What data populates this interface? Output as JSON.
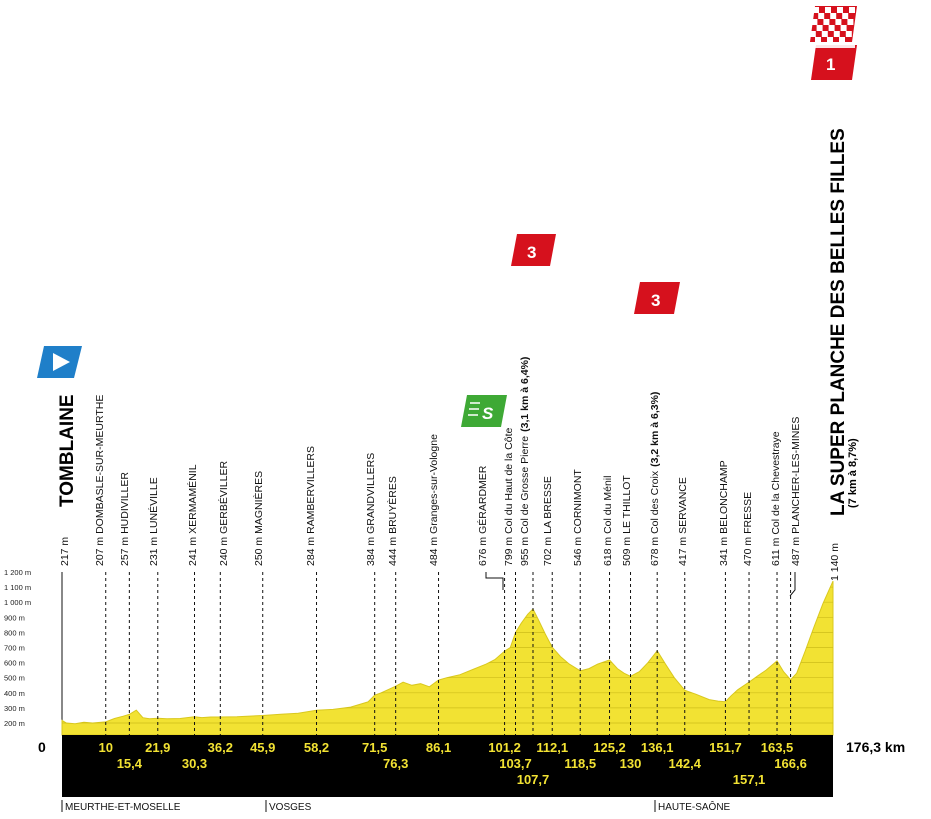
{
  "start": {
    "name": "TOMBLAINE",
    "altitude": "217 m"
  },
  "finish": {
    "name": "LA SUPER PLANCHE DES BELLES FILLES",
    "altitude": "1 140 m",
    "climb": "(7 km à 8,7%)",
    "category": "1"
  },
  "total_distance": "176,3 km",
  "start_km": "0",
  "y_axis": [
    "1 200 m",
    "1 100 m",
    "1 000 m",
    "900 m",
    "800 m",
    "700 m",
    "600 m",
    "500 m",
    "400 m",
    "300 m",
    "200 m"
  ],
  "waypoints": [
    {
      "label": "207 m DOMBASLE-SUR-MEURTHE",
      "km": "10"
    },
    {
      "label": "257 m HUDIVILLER",
      "km": "15,4"
    },
    {
      "label": "231 m LUNÉVILLE",
      "km": "21,9"
    },
    {
      "label": "241 m XERMAMÉNIL",
      "km": "30,3"
    },
    {
      "label": "240 m GERBÉVILLER",
      "km": "36,2"
    },
    {
      "label": "250 m MAGNIÈRES",
      "km": "45,9"
    },
    {
      "label": "284 m RAMBERVILLERS",
      "km": "58,2"
    },
    {
      "label": "384 m GRANDVILLERS",
      "km": "71,5"
    },
    {
      "label": "444 m BRUYÈRES",
      "km": "76,3"
    },
    {
      "label": "484 m Granges-sur-Vologne",
      "km": "86,1"
    },
    {
      "label": "676 m GÉRARDMER",
      "km": "101,2"
    },
    {
      "label": "799 m Col du Haut de la Côte",
      "km": "103,7"
    },
    {
      "label": "955 m Col de Grosse Pierre",
      "climb": "(3,1 km à 6,4%)",
      "km": "107,7"
    },
    {
      "label": "702 m LA BRESSE",
      "km": "112,1"
    },
    {
      "label": "546 m CORNIMONT",
      "km": "118,5"
    },
    {
      "label": "618 m Col du Ménil",
      "km": "125,2"
    },
    {
      "label": "509 m LE THILLOT",
      "km": "130"
    },
    {
      "label": "678 m Col des Croix",
      "climb": "(3,2 km à 6,3%)",
      "km": "136,1"
    },
    {
      "label": "417 m SERVANCE",
      "km": "142,4"
    },
    {
      "label": "341 m BELONCHAMP",
      "km": "151,7"
    },
    {
      "label": "470 m FRESSE",
      "km": "157,1"
    },
    {
      "label": "611 m Col de la Chevestraye",
      "km": "163,5"
    },
    {
      "label": "487 m PLANCHER-LES-MINES",
      "km": "166,6"
    }
  ],
  "badges": {
    "climb_cat_1": "3",
    "climb_cat_2": "3",
    "sprint": "S",
    "finish_cat": "1"
  },
  "regions": [
    "MEURTHE-ET-MOSELLE",
    "VOSGES",
    "HAUTE-SAÔNE"
  ],
  "colors": {
    "profile_fill": "#f2e233",
    "climb_red": "#d6111d",
    "sprint_green": "#3ea935",
    "start_blue": "#1f7fc9",
    "band_black": "#000000",
    "km_text": "#f2e233"
  },
  "chart_data": {
    "type": "area",
    "x_unit": "km",
    "y_unit": "m",
    "xlim": [
      0,
      176.3
    ],
    "ylim": [
      100,
      1200
    ],
    "points": [
      [
        0,
        217
      ],
      [
        1,
        200
      ],
      [
        3,
        195
      ],
      [
        5,
        205
      ],
      [
        7,
        200
      ],
      [
        10,
        207
      ],
      [
        12,
        230
      ],
      [
        14,
        245
      ],
      [
        15.4,
        257
      ],
      [
        17,
        285
      ],
      [
        18.5,
        235
      ],
      [
        20,
        228
      ],
      [
        21.9,
        231
      ],
      [
        24,
        228
      ],
      [
        27,
        230
      ],
      [
        30.3,
        241
      ],
      [
        32,
        236
      ],
      [
        34,
        240
      ],
      [
        36.2,
        240
      ],
      [
        40,
        242
      ],
      [
        45.9,
        250
      ],
      [
        50,
        258
      ],
      [
        54,
        264
      ],
      [
        58.2,
        284
      ],
      [
        62,
        290
      ],
      [
        66,
        305
      ],
      [
        70,
        340
      ],
      [
        71.5,
        384
      ],
      [
        73,
        400
      ],
      [
        76.3,
        444
      ],
      [
        78,
        470
      ],
      [
        80,
        450
      ],
      [
        82,
        460
      ],
      [
        84,
        440
      ],
      [
        86.1,
        484
      ],
      [
        88,
        500
      ],
      [
        91,
        520
      ],
      [
        94,
        555
      ],
      [
        97,
        590
      ],
      [
        99,
        620
      ],
      [
        101.2,
        676
      ],
      [
        102.5,
        700
      ],
      [
        103.7,
        799
      ],
      [
        105,
        860
      ],
      [
        106.5,
        920
      ],
      [
        107.7,
        955
      ],
      [
        109,
        880
      ],
      [
        110.5,
        790
      ],
      [
        112.1,
        702
      ],
      [
        114,
        640
      ],
      [
        116,
        590
      ],
      [
        118.5,
        546
      ],
      [
        120.5,
        560
      ],
      [
        122.5,
        590
      ],
      [
        125.2,
        618
      ],
      [
        127,
        560
      ],
      [
        128.5,
        530
      ],
      [
        130,
        509
      ],
      [
        132,
        540
      ],
      [
        134,
        600
      ],
      [
        136.1,
        678
      ],
      [
        138,
        590
      ],
      [
        140,
        500
      ],
      [
        142.4,
        417
      ],
      [
        145,
        390
      ],
      [
        148,
        355
      ],
      [
        150,
        345
      ],
      [
        151.7,
        341
      ],
      [
        153,
        380
      ],
      [
        154.5,
        420
      ],
      [
        157.1,
        470
      ],
      [
        159,
        510
      ],
      [
        161,
        550
      ],
      [
        163.5,
        611
      ],
      [
        165,
        540
      ],
      [
        166.6,
        487
      ],
      [
        168,
        530
      ],
      [
        170,
        680
      ],
      [
        172,
        840
      ],
      [
        174,
        990
      ],
      [
        176.3,
        1140
      ]
    ]
  }
}
